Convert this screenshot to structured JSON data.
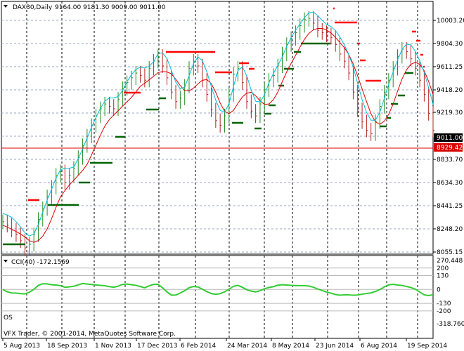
{
  "header": {
    "symbol": "DAX30,Daily",
    "ohlc": "9164.00 9181.30 9009.00 9011.00"
  },
  "price_axis": {
    "labels": [
      "10003.20",
      "9804.30",
      "9611.25",
      "9418.20",
      "9219.30",
      "9011.00",
      "8929.42",
      "8833.70",
      "8634.30",
      "8441.25",
      "8248.20",
      "8055.15"
    ],
    "current": "9011.00",
    "line": "8929.42"
  },
  "indicator": {
    "title": "CCI(40) -172.1569",
    "ob_label": "",
    "os_label": "OS",
    "axis_labels": [
      "270.448",
      "200",
      "130",
      "0",
      "-130",
      "-200",
      "-318.7604"
    ]
  },
  "footer": {
    "copyright": "VFX Trader, © 2001-2014, MetaQuotes Software Corp."
  },
  "time_axis": {
    "labels": [
      "5 Aug 2013",
      "18 Sep 2013",
      "1 Nov 2013",
      "17 Dec 2013",
      "6 Feb 2014",
      "24 Mar 2014",
      "8 May 2014",
      "23 Jun 2014",
      "6 Aug 2014",
      "19 Sep 2014"
    ]
  },
  "colors": {
    "bull_bar": "#228B22",
    "bear_bar": "#B22222",
    "ma_fast": "#00BFD8",
    "ma_slow": "#DD0000",
    "support": "#006400",
    "resistance": "#FF0000",
    "cci": "#33CC33"
  },
  "chart_data": {
    "type": "line",
    "series": [
      {
        "values": [
          8310,
          8280,
          8240,
          8200,
          8150,
          8090,
          8120,
          8200,
          8330,
          8420,
          8520,
          8600,
          8700,
          8730,
          8640,
          8700,
          8760,
          8850,
          8950,
          9030,
          9120,
          9200,
          9260,
          9300,
          9280,
          9260,
          9340,
          9430,
          9480,
          9520,
          9560,
          9540,
          9500,
          9600,
          9660,
          9700,
          9620,
          9520,
          9400,
          9320,
          9350,
          9450,
          9600,
          9660,
          9620,
          9500,
          9380,
          9250,
          9160,
          9120,
          9200,
          9380,
          9550,
          9600,
          9480,
          9320,
          9240,
          9200,
          9300,
          9420,
          9500,
          9540,
          9620,
          9720,
          9800,
          9850,
          9900,
          9960,
          10010,
          10020,
          9980,
          9920,
          9900,
          9880,
          9860,
          9800,
          9720,
          9660,
          9560,
          9400,
          9250,
          9150,
          9080,
          9050,
          9150,
          9280,
          9400,
          9500,
          9600,
          9700,
          9760,
          9740,
          9680,
          9600,
          9500,
          9380,
          9220,
          9080
        ]
      }
    ],
    "x_range": [
      "5 Aug 2013",
      "26 Sep 2014"
    ],
    "ylim": [
      8000,
      10100
    ]
  }
}
